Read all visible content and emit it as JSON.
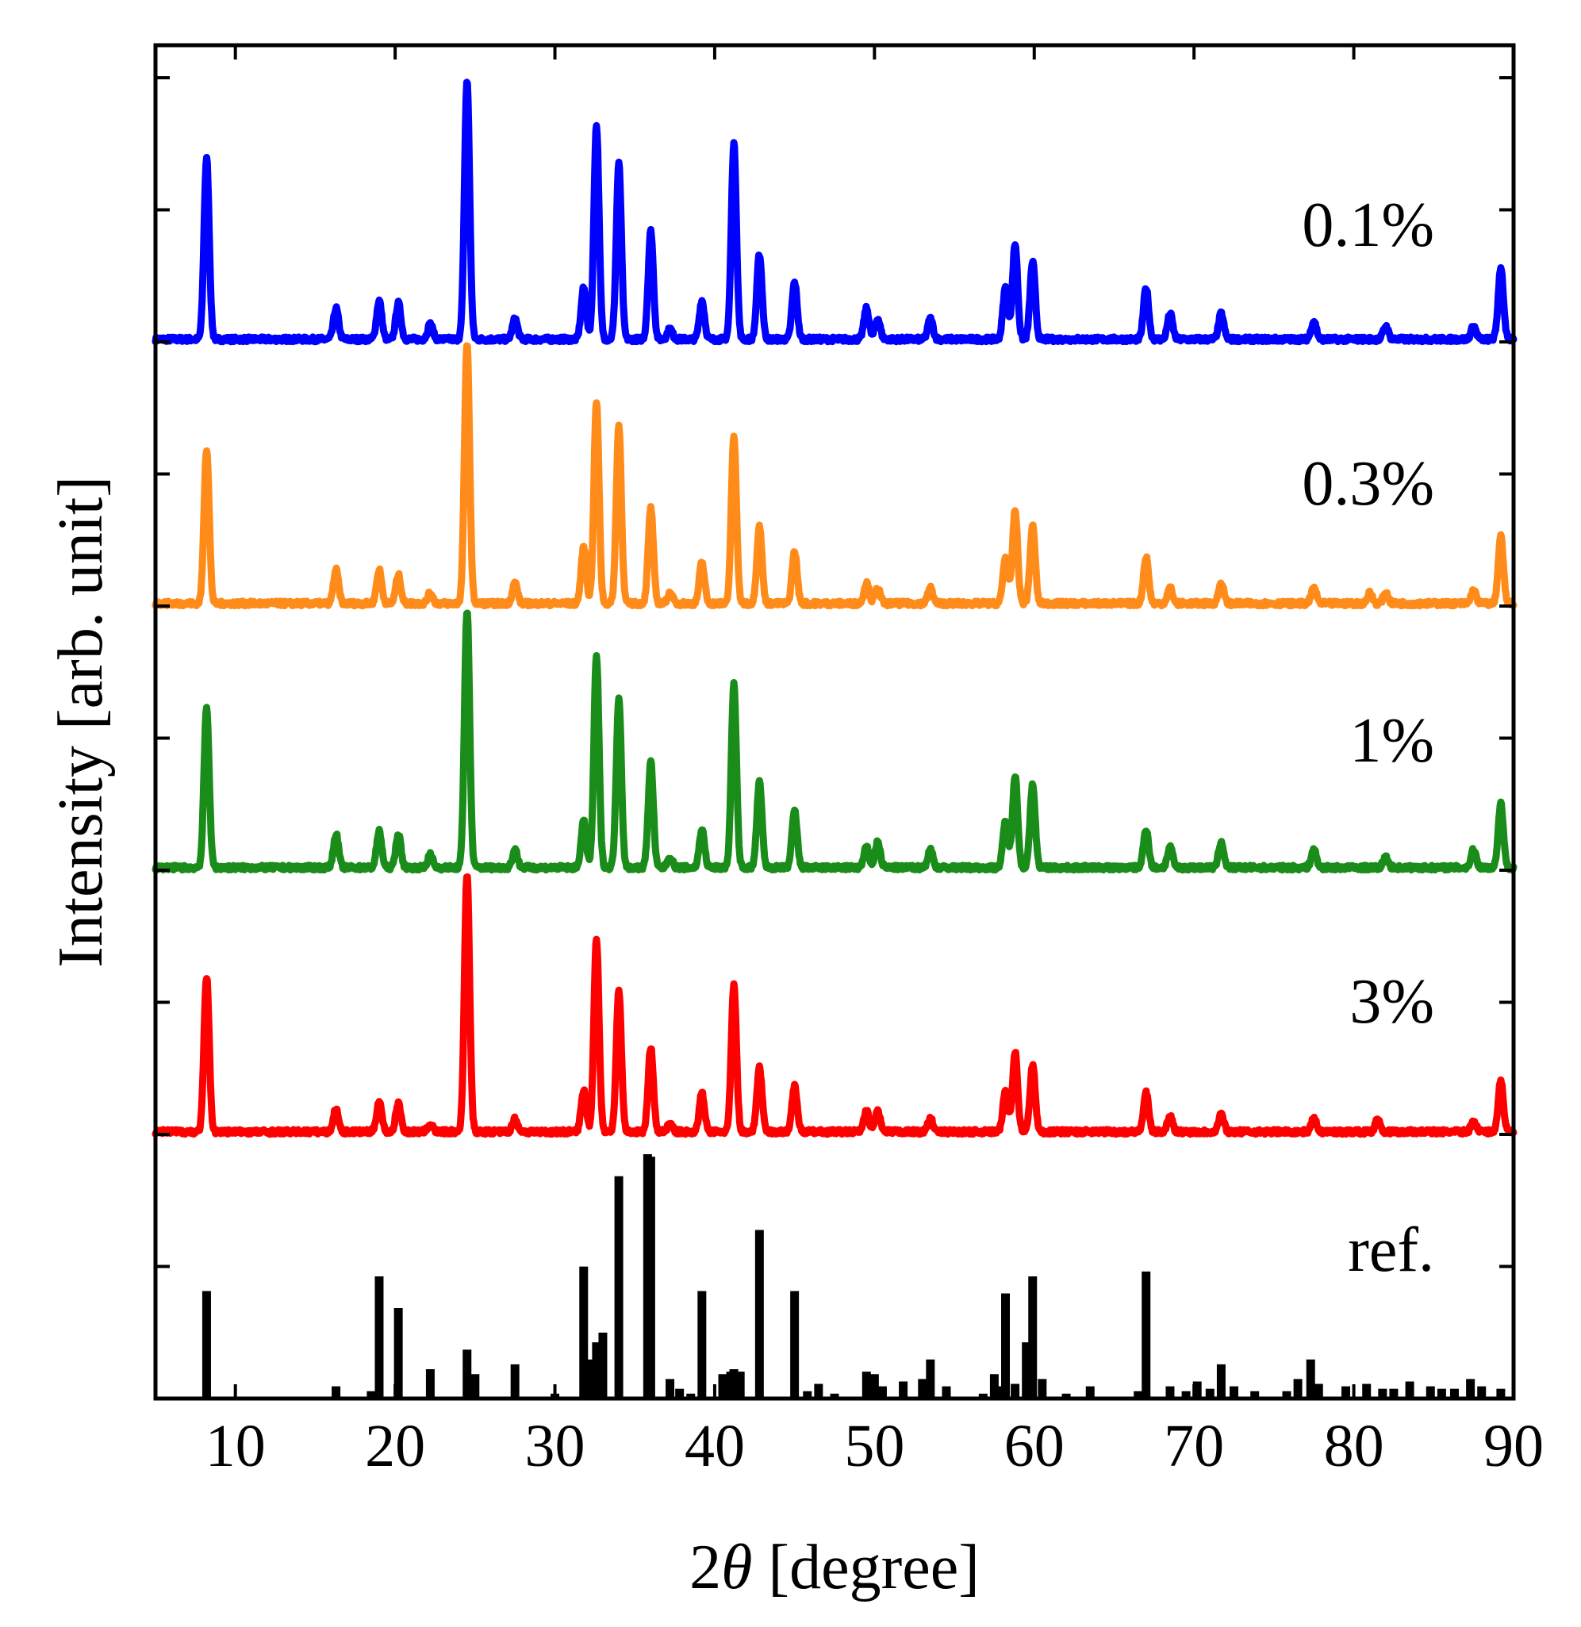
{
  "chart_data": {
    "type": "line",
    "title": "",
    "xlabel": "2θ [degree]",
    "xlabel_prefix": "2",
    "xlabel_symbol": "θ",
    "xlabel_suffix": " [degree]",
    "ylabel": "Intensity [arb. unit]",
    "xlim": [
      5,
      90
    ],
    "xticks": [
      10,
      20,
      30,
      40,
      50,
      60,
      70,
      80,
      90
    ],
    "grid": false,
    "legend": "none",
    "stacked_offset": true,
    "series": [
      {
        "name": "0.1%",
        "color": "#0000ff",
        "baseline": 4,
        "peaks": [
          [
            8.2,
            0.7
          ],
          [
            16.3,
            0.12
          ],
          [
            19.0,
            0.15
          ],
          [
            20.2,
            0.14
          ],
          [
            22.2,
            0.06
          ],
          [
            24.5,
            1.0
          ],
          [
            27.5,
            0.08
          ],
          [
            31.8,
            0.2
          ],
          [
            32.6,
            0.83
          ],
          [
            34.0,
            0.68
          ],
          [
            36.0,
            0.42
          ],
          [
            37.2,
            0.04
          ],
          [
            39.2,
            0.15
          ],
          [
            41.2,
            0.76
          ],
          [
            42.8,
            0.33
          ],
          [
            45.0,
            0.22
          ],
          [
            49.5,
            0.12
          ],
          [
            50.2,
            0.08
          ],
          [
            53.5,
            0.08
          ],
          [
            58.2,
            0.2
          ],
          [
            58.8,
            0.37
          ],
          [
            59.9,
            0.3
          ],
          [
            67.0,
            0.2
          ],
          [
            68.5,
            0.1
          ],
          [
            71.7,
            0.1
          ],
          [
            77.5,
            0.07
          ],
          [
            82.0,
            0.05
          ],
          [
            87.5,
            0.05
          ],
          [
            89.2,
            0.28
          ]
        ]
      },
      {
        "name": "0.3%",
        "color": "#ff8c1a",
        "baseline": 3,
        "peaks": [
          [
            8.2,
            0.6
          ],
          [
            16.3,
            0.13
          ],
          [
            19.0,
            0.13
          ],
          [
            20.2,
            0.11
          ],
          [
            22.2,
            0.04
          ],
          [
            24.5,
            1.0
          ],
          [
            27.5,
            0.08
          ],
          [
            31.8,
            0.22
          ],
          [
            32.6,
            0.78
          ],
          [
            34.0,
            0.69
          ],
          [
            36.0,
            0.37
          ],
          [
            37.2,
            0.04
          ],
          [
            39.2,
            0.16
          ],
          [
            41.2,
            0.65
          ],
          [
            42.8,
            0.3
          ],
          [
            45.0,
            0.2
          ],
          [
            49.5,
            0.08
          ],
          [
            50.2,
            0.06
          ],
          [
            53.5,
            0.06
          ],
          [
            58.2,
            0.18
          ],
          [
            58.8,
            0.36
          ],
          [
            59.9,
            0.3
          ],
          [
            67.0,
            0.18
          ],
          [
            68.5,
            0.06
          ],
          [
            71.7,
            0.08
          ],
          [
            77.5,
            0.06
          ],
          [
            81.0,
            0.04
          ],
          [
            82.0,
            0.04
          ],
          [
            87.5,
            0.05
          ],
          [
            89.2,
            0.26
          ]
        ]
      },
      {
        "name": "1%",
        "color": "#198c19",
        "baseline": 2,
        "peaks": [
          [
            8.2,
            0.62
          ],
          [
            16.3,
            0.13
          ],
          [
            19.0,
            0.14
          ],
          [
            20.2,
            0.13
          ],
          [
            22.2,
            0.05
          ],
          [
            24.5,
            1.0
          ],
          [
            27.5,
            0.07
          ],
          [
            31.8,
            0.18
          ],
          [
            32.6,
            0.82
          ],
          [
            34.0,
            0.66
          ],
          [
            36.0,
            0.41
          ],
          [
            37.2,
            0.04
          ],
          [
            39.2,
            0.15
          ],
          [
            41.2,
            0.71
          ],
          [
            42.8,
            0.33
          ],
          [
            45.0,
            0.22
          ],
          [
            49.5,
            0.08
          ],
          [
            50.2,
            0.1
          ],
          [
            53.5,
            0.07
          ],
          [
            58.2,
            0.18
          ],
          [
            58.8,
            0.36
          ],
          [
            59.9,
            0.32
          ],
          [
            67.0,
            0.15
          ],
          [
            68.5,
            0.08
          ],
          [
            71.7,
            0.1
          ],
          [
            77.5,
            0.07
          ],
          [
            82.0,
            0.04
          ],
          [
            87.5,
            0.07
          ],
          [
            89.2,
            0.25
          ]
        ]
      },
      {
        "name": "3%",
        "color": "#ff0000",
        "baseline": 1,
        "peaks": [
          [
            8.2,
            0.6
          ],
          [
            16.3,
            0.09
          ],
          [
            19.0,
            0.12
          ],
          [
            20.2,
            0.11
          ],
          [
            22.2,
            0.03
          ],
          [
            24.5,
            1.0
          ],
          [
            27.5,
            0.05
          ],
          [
            31.8,
            0.16
          ],
          [
            32.6,
            0.75
          ],
          [
            34.0,
            0.55
          ],
          [
            36.0,
            0.33
          ],
          [
            37.2,
            0.03
          ],
          [
            39.2,
            0.15
          ],
          [
            41.2,
            0.57
          ],
          [
            42.8,
            0.25
          ],
          [
            45.0,
            0.18
          ],
          [
            49.5,
            0.08
          ],
          [
            50.2,
            0.08
          ],
          [
            53.5,
            0.05
          ],
          [
            58.2,
            0.16
          ],
          [
            58.8,
            0.31
          ],
          [
            59.9,
            0.26
          ],
          [
            67.0,
            0.15
          ],
          [
            68.5,
            0.06
          ],
          [
            71.7,
            0.07
          ],
          [
            77.5,
            0.05
          ],
          [
            81.5,
            0.05
          ],
          [
            87.5,
            0.04
          ],
          [
            89.2,
            0.2
          ]
        ]
      }
    ],
    "reference": {
      "name": "ref.",
      "color": "#000000",
      "baseline": 0,
      "x": [
        8.2,
        16.3,
        18.5,
        19.0,
        20.2,
        22.2,
        24.5,
        25.0,
        27.5,
        30.0,
        31.8,
        32.3,
        32.6,
        33.0,
        34.0,
        35.8,
        36.0,
        37.2,
        37.8,
        38.5,
        39.2,
        40.5,
        41.0,
        41.2,
        41.6,
        42.8,
        45.0,
        45.8,
        46.5,
        47.5,
        49.5,
        50.0,
        50.5,
        51.8,
        53.0,
        53.5,
        54.5,
        56.8,
        57.5,
        58.0,
        58.2,
        58.8,
        59.5,
        59.9,
        60.5,
        62.0,
        63.5,
        66.5,
        67.0,
        68.5,
        69.5,
        70.2,
        71.0,
        71.7,
        72.5,
        73.8,
        75.8,
        76.5,
        77.3,
        77.8,
        79.5,
        80.8,
        81.8,
        82.5,
        83.5,
        84.8,
        85.5,
        86.3,
        87.3,
        88.0,
        89.2
      ],
      "y": [
        0.44,
        0.05,
        0.03,
        0.5,
        0.37,
        0.12,
        0.2,
        0.1,
        0.14,
        0.02,
        0.54,
        0.16,
        0.23,
        0.27,
        0.91,
        1.0,
        0.99,
        0.08,
        0.04,
        0.02,
        0.44,
        0.1,
        0.11,
        0.12,
        0.11,
        0.69,
        0.44,
        0.03,
        0.06,
        0.02,
        0.11,
        0.1,
        0.05,
        0.07,
        0.08,
        0.16,
        0.05,
        0.02,
        0.1,
        0.05,
        0.43,
        0.06,
        0.23,
        0.5,
        0.08,
        0.02,
        0.05,
        0.03,
        0.52,
        0.05,
        0.03,
        0.07,
        0.04,
        0.14,
        0.05,
        0.03,
        0.03,
        0.08,
        0.16,
        0.06,
        0.05,
        0.06,
        0.04,
        0.04,
        0.07,
        0.05,
        0.04,
        0.04,
        0.08,
        0.05,
        0.04
      ]
    },
    "labels": [
      "0.1%",
      "0.3%",
      "1%",
      "3%",
      "ref."
    ]
  }
}
